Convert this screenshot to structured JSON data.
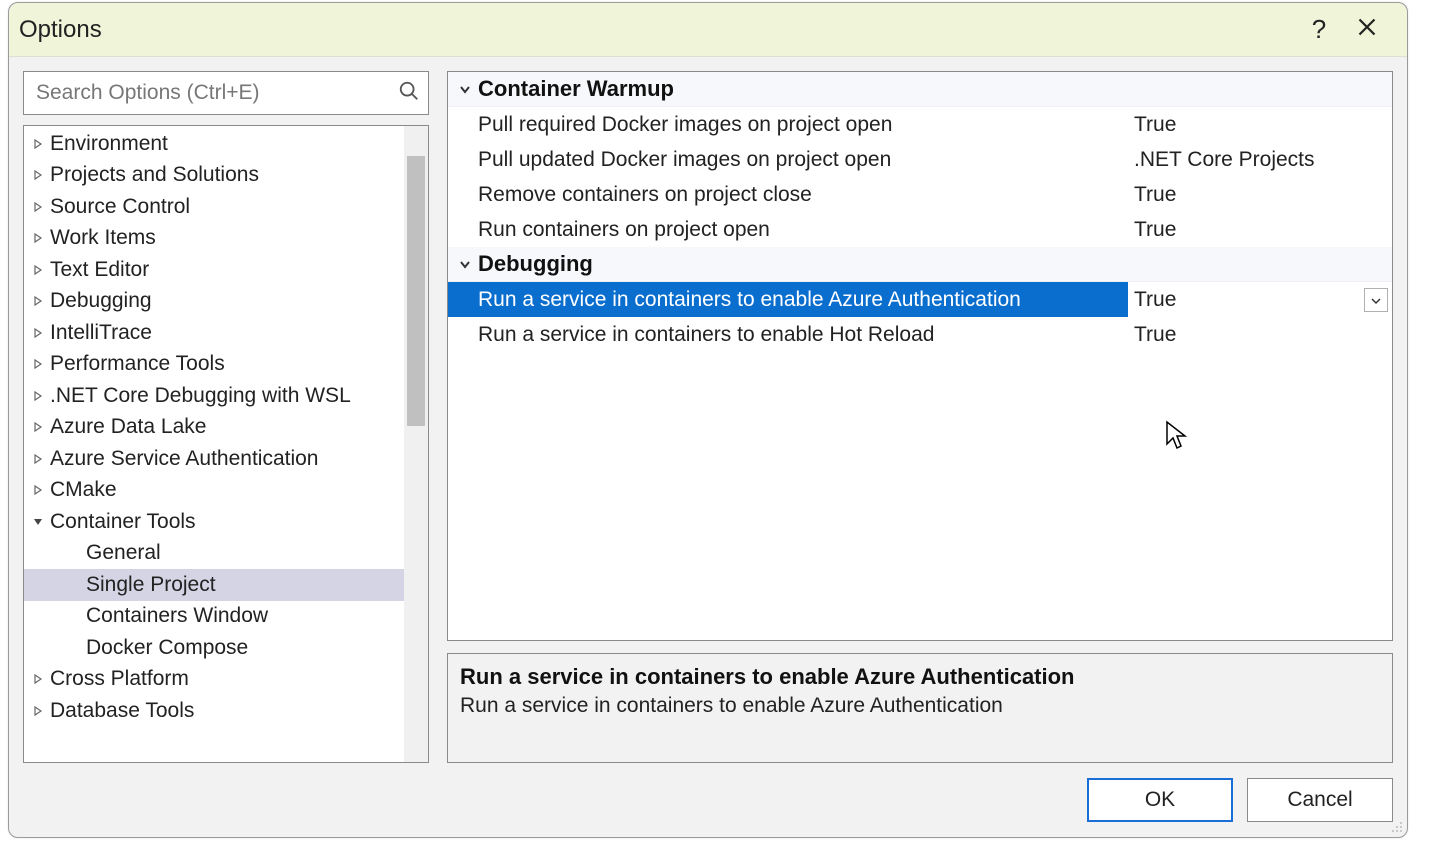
{
  "window": {
    "title": "Options",
    "help_tooltip": "?",
    "close_tooltip": "Close"
  },
  "search": {
    "placeholder": "Search Options (Ctrl+E)"
  },
  "tree": [
    {
      "label": "Environment",
      "expanded": false,
      "level": 0
    },
    {
      "label": "Projects and Solutions",
      "expanded": false,
      "level": 0
    },
    {
      "label": "Source Control",
      "expanded": false,
      "level": 0
    },
    {
      "label": "Work Items",
      "expanded": false,
      "level": 0
    },
    {
      "label": "Text Editor",
      "expanded": false,
      "level": 0
    },
    {
      "label": "Debugging",
      "expanded": false,
      "level": 0
    },
    {
      "label": "IntelliTrace",
      "expanded": false,
      "level": 0
    },
    {
      "label": "Performance Tools",
      "expanded": false,
      "level": 0
    },
    {
      "label": ".NET Core Debugging with WSL",
      "expanded": false,
      "level": 0
    },
    {
      "label": "Azure Data Lake",
      "expanded": false,
      "level": 0
    },
    {
      "label": "Azure Service Authentication",
      "expanded": false,
      "level": 0
    },
    {
      "label": "CMake",
      "expanded": false,
      "level": 0
    },
    {
      "label": "Container Tools",
      "expanded": true,
      "level": 0
    },
    {
      "label": "General",
      "expanded": null,
      "level": 1
    },
    {
      "label": "Single Project",
      "expanded": null,
      "level": 1,
      "selected": true
    },
    {
      "label": "Containers Window",
      "expanded": null,
      "level": 1
    },
    {
      "label": "Docker Compose",
      "expanded": null,
      "level": 1
    },
    {
      "label": "Cross Platform",
      "expanded": false,
      "level": 0
    },
    {
      "label": "Database Tools",
      "expanded": false,
      "level": 0
    }
  ],
  "grid": {
    "groups": [
      {
        "title": "Container Warmup",
        "rows": [
          {
            "name": "Pull required Docker images on project open",
            "value": "True"
          },
          {
            "name": "Pull updated Docker images on project open",
            "value": ".NET Core Projects"
          },
          {
            "name": "Remove containers on project close",
            "value": "True"
          },
          {
            "name": "Run containers on project open",
            "value": "True"
          }
        ]
      },
      {
        "title": "Debugging",
        "rows": [
          {
            "name": "Run a service in containers to enable Azure Authentication",
            "value": "True",
            "selected": true,
            "has_dropdown": true
          },
          {
            "name": "Run a service in containers to enable Hot Reload",
            "value": "True"
          }
        ]
      }
    ]
  },
  "description": {
    "title": "Run a service in containers to enable Azure Authentication",
    "text": "Run a service in containers to enable Azure Authentication"
  },
  "buttons": {
    "ok": "OK",
    "cancel": "Cancel"
  },
  "colors": {
    "titlebar_bg": "#f0f4d8",
    "dialog_bg": "#f2f2f2",
    "border": "#8a8a8a",
    "selection_tree": "#d4d4e4",
    "selection_grid": "#0a6ecf",
    "group_header_bg": "#f6f8fb",
    "primary_border": "#1a6fd6"
  }
}
